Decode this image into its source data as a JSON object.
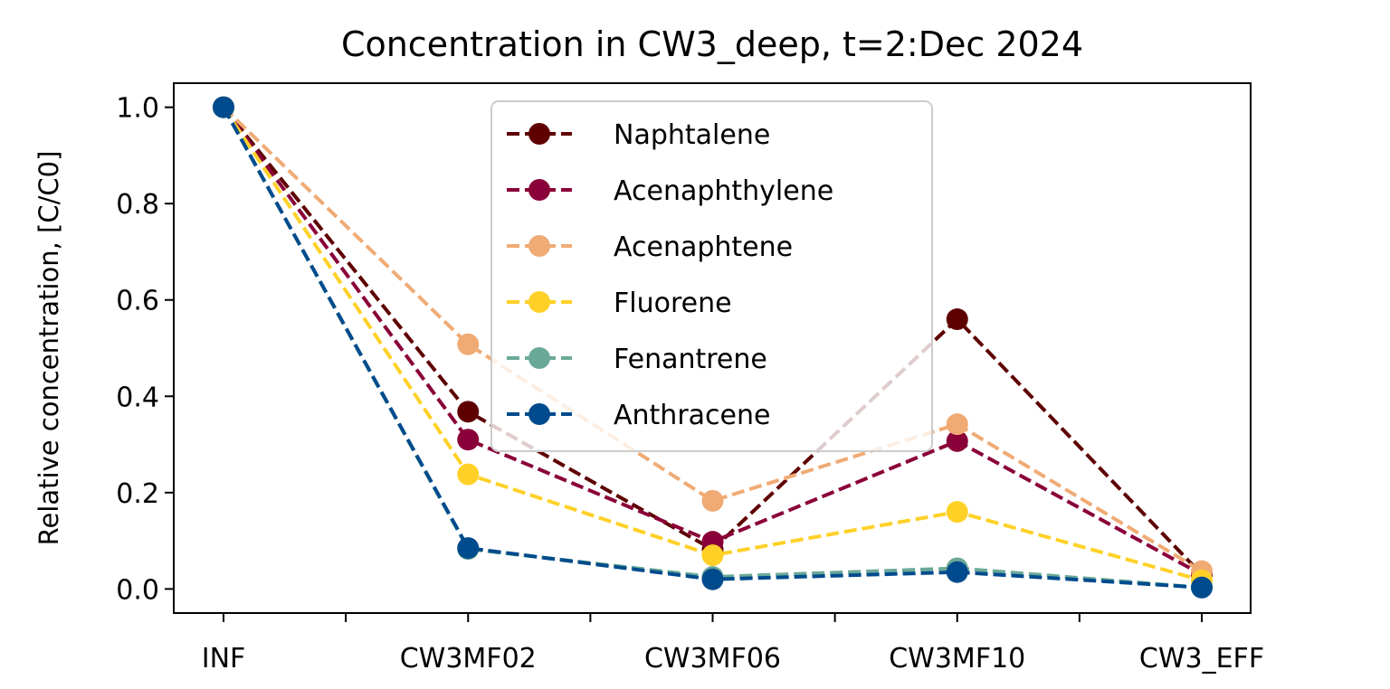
{
  "chart_data": {
    "type": "line",
    "title": "Concentration in CW3_deep, t=2:Dec 2024",
    "xlabel": "",
    "ylabel": "Relative concentration, [C/C0]",
    "categories": [
      "INF",
      "CW3MF02",
      "CW3MF06",
      "CW3MF10",
      "CW3_EFF"
    ],
    "ylim": [
      -0.05,
      1.05
    ],
    "yticks": [
      "0.0",
      "0.2",
      "0.4",
      "0.6",
      "0.8",
      "1.0"
    ],
    "ytick_values": [
      0.0,
      0.2,
      0.4,
      0.6,
      0.8,
      1.0
    ],
    "legend_position": "upper-center",
    "series": [
      {
        "name": "Naphtalene",
        "color": "#5e0000",
        "values": [
          1.0,
          0.368,
          0.082,
          0.56,
          0.03
        ]
      },
      {
        "name": "Acenaphthylene",
        "color": "#8a0039",
        "values": [
          1.0,
          0.31,
          0.098,
          0.307,
          0.03
        ]
      },
      {
        "name": "Acenaphtene",
        "color": "#f0ab75",
        "values": [
          1.0,
          0.508,
          0.183,
          0.342,
          0.037
        ]
      },
      {
        "name": "Fluorene",
        "color": "#ffd127",
        "values": [
          1.0,
          0.238,
          0.07,
          0.16,
          0.018
        ]
      },
      {
        "name": "Fenantrene",
        "color": "#6aa998",
        "values": [
          1.0,
          0.083,
          0.025,
          0.043,
          0.003
        ]
      },
      {
        "name": "Anthracene",
        "color": "#004b8d",
        "values": [
          1.0,
          0.085,
          0.02,
          0.035,
          0.003
        ]
      }
    ]
  }
}
